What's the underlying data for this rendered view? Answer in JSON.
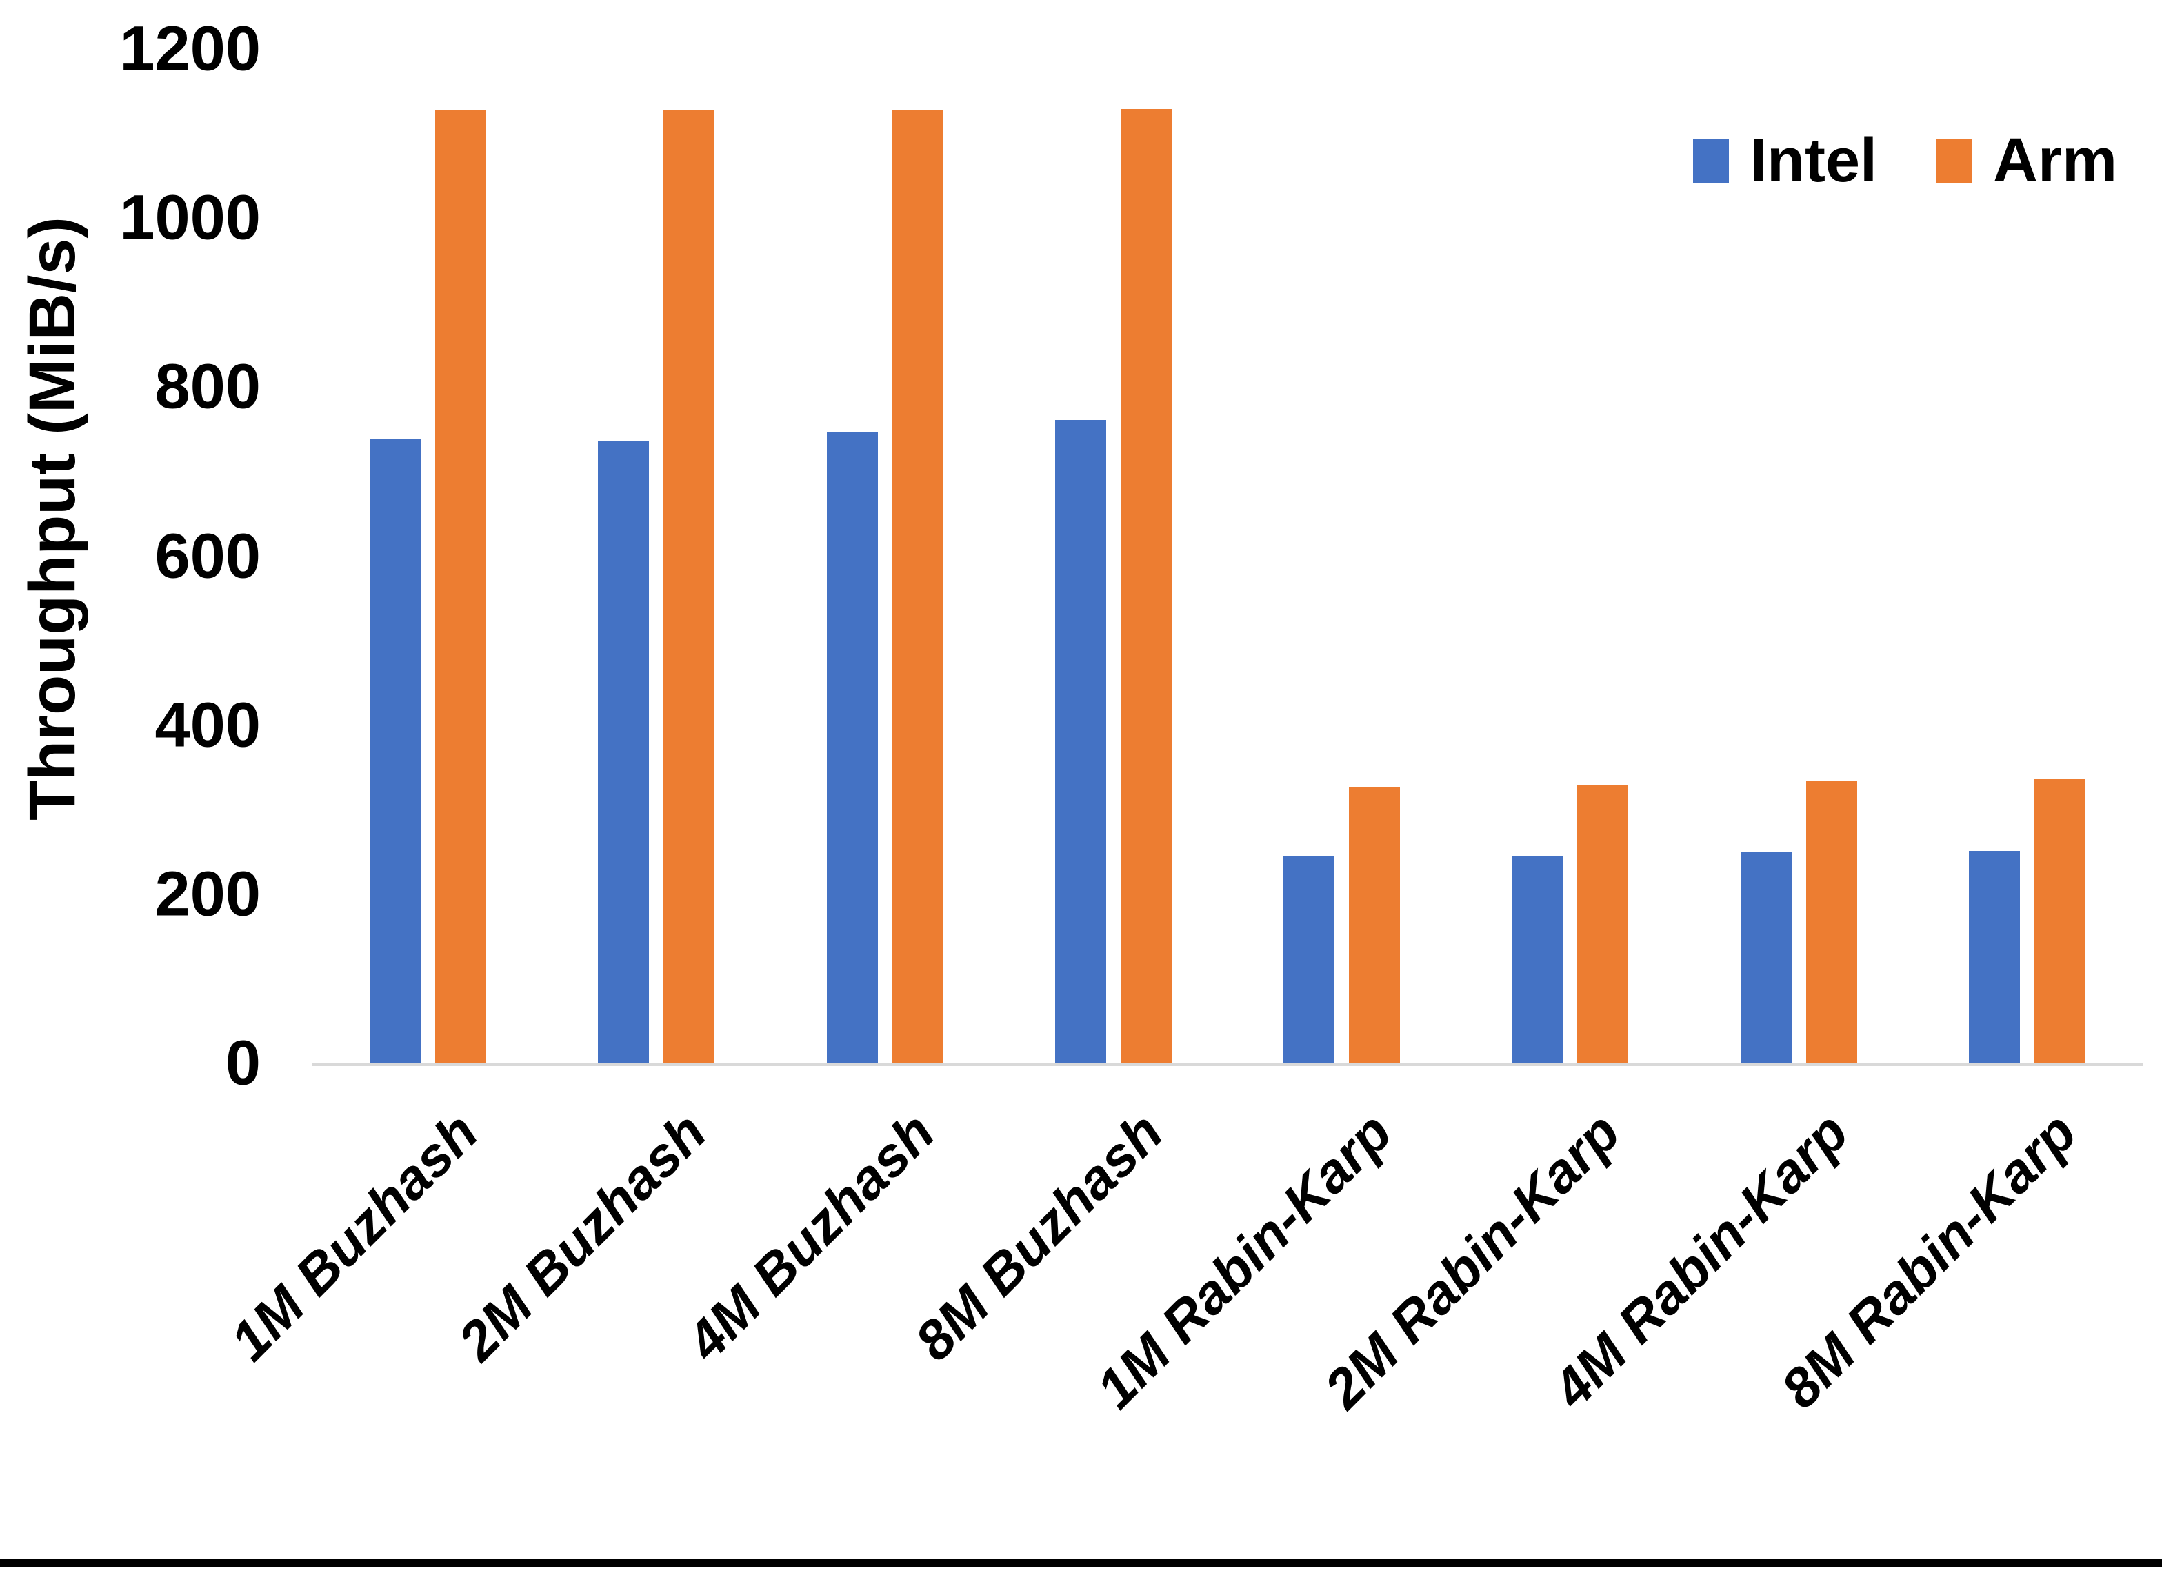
{
  "chart_data": {
    "type": "bar",
    "title": "",
    "xlabel": "",
    "ylabel": "Throughput (MiB/s)",
    "categories": [
      "1M Buzhash",
      "2M Buzhash",
      "4M Buzhash",
      "8M Buzhash",
      "1M Rabin-Karp",
      "2M Rabin-Karp",
      "4M Rabin-Karp",
      "8M Rabin-Karp"
    ],
    "series": [
      {
        "name": "Intel",
        "color": "#4472C4",
        "values": [
          740,
          738,
          748,
          763,
          247,
          247,
          251,
          253
        ]
      },
      {
        "name": "Arm",
        "color": "#ED7D31",
        "values": [
          1130,
          1130,
          1130,
          1131,
          329,
          331,
          335,
          338
        ]
      }
    ],
    "y_axis": {
      "min": 0,
      "max": 1200,
      "step": 200,
      "ticks": [
        0,
        200,
        400,
        600,
        800,
        1000,
        1200
      ]
    },
    "legend_position": "top-right",
    "grid": false
  },
  "ui": {
    "background_color": "#FFFFFF",
    "axis_line_color": "#D9D9D9",
    "text_color": "#000000",
    "bottom_border_color": "#000000"
  }
}
